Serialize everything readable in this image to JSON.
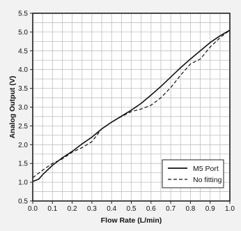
{
  "chart_data": {
    "type": "line",
    "title": "",
    "xlabel": "Flow Rate (L/min)",
    "ylabel": "Analog Output (V)",
    "xlim": [
      0.0,
      1.0
    ],
    "ylim": [
      0.5,
      5.5
    ],
    "x_ticks": [
      "0.0",
      "0.1",
      "0.2",
      "0.3",
      "0.4",
      "0.5",
      "0.6",
      "0.7",
      "0.8",
      "0.9",
      "1.0"
    ],
    "y_ticks": [
      "0.5",
      "1.0",
      "1.5",
      "2.0",
      "2.5",
      "3.0",
      "3.5",
      "4.0",
      "4.5",
      "5.0",
      "5.5"
    ],
    "grid": true,
    "legend_position": "bottom-right",
    "series": [
      {
        "name": "M5 Port",
        "line_style": "solid",
        "color": "#111111",
        "points": [
          [
            0.0,
            1.02
          ],
          [
            0.03,
            1.08
          ],
          [
            0.05,
            1.2
          ],
          [
            0.1,
            1.45
          ],
          [
            0.15,
            1.65
          ],
          [
            0.2,
            1.82
          ],
          [
            0.25,
            2.02
          ],
          [
            0.3,
            2.2
          ],
          [
            0.35,
            2.42
          ],
          [
            0.4,
            2.6
          ],
          [
            0.45,
            2.76
          ],
          [
            0.5,
            2.92
          ],
          [
            0.55,
            3.1
          ],
          [
            0.6,
            3.32
          ],
          [
            0.65,
            3.55
          ],
          [
            0.7,
            3.8
          ],
          [
            0.75,
            4.05
          ],
          [
            0.8,
            4.28
          ],
          [
            0.85,
            4.5
          ],
          [
            0.9,
            4.72
          ],
          [
            0.95,
            4.9
          ],
          [
            1.0,
            5.05
          ]
        ]
      },
      {
        "name": "No fitting",
        "line_style": "dashed",
        "color": "#111111",
        "points": [
          [
            0.0,
            1.12
          ],
          [
            0.05,
            1.32
          ],
          [
            0.1,
            1.5
          ],
          [
            0.15,
            1.62
          ],
          [
            0.2,
            1.8
          ],
          [
            0.25,
            1.92
          ],
          [
            0.3,
            2.08
          ],
          [
            0.35,
            2.42
          ],
          [
            0.4,
            2.6
          ],
          [
            0.45,
            2.75
          ],
          [
            0.5,
            2.88
          ],
          [
            0.55,
            2.95
          ],
          [
            0.6,
            3.05
          ],
          [
            0.65,
            3.25
          ],
          [
            0.7,
            3.52
          ],
          [
            0.75,
            3.85
          ],
          [
            0.8,
            4.15
          ],
          [
            0.85,
            4.28
          ],
          [
            0.9,
            4.6
          ],
          [
            0.95,
            4.85
          ],
          [
            1.0,
            5.05
          ]
        ]
      }
    ]
  }
}
